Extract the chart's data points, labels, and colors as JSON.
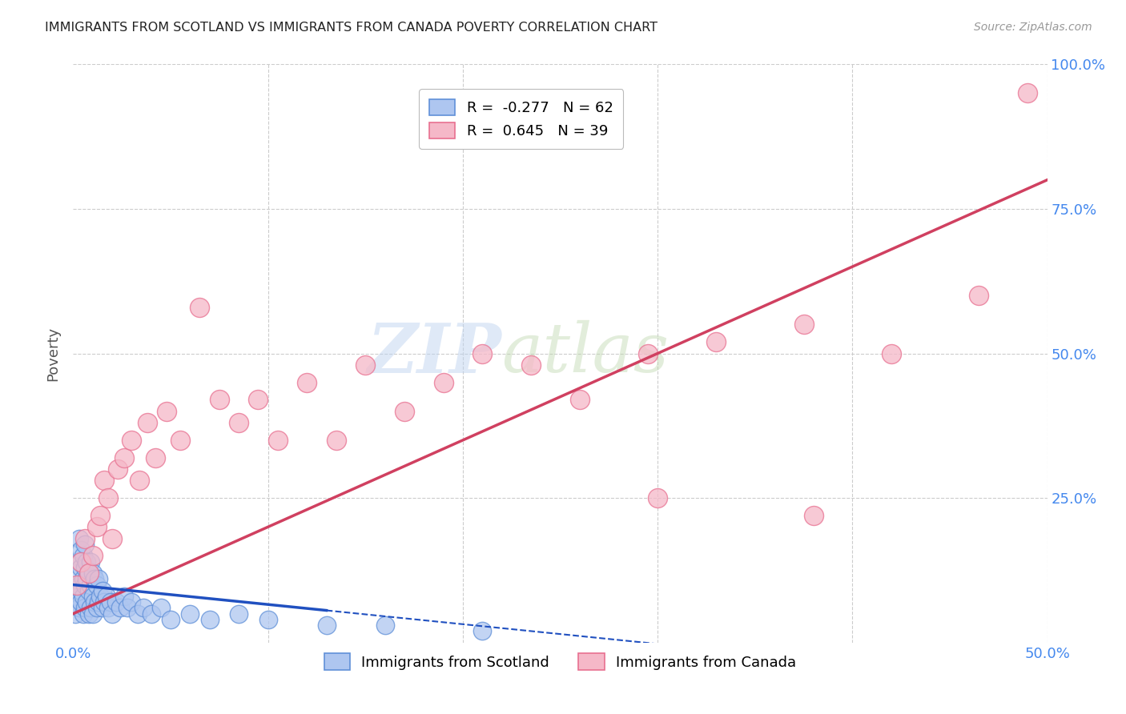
{
  "title": "IMMIGRANTS FROM SCOTLAND VS IMMIGRANTS FROM CANADA POVERTY CORRELATION CHART",
  "source": "Source: ZipAtlas.com",
  "ylabel": "Poverty",
  "xlim": [
    0,
    0.5
  ],
  "ylim": [
    0,
    1.0
  ],
  "xtick_vals": [
    0.0,
    0.1,
    0.2,
    0.3,
    0.4,
    0.5
  ],
  "xtick_labels": [
    "0.0%",
    "",
    "",
    "",
    "",
    "50.0%"
  ],
  "ytick_vals": [
    0.0,
    0.25,
    0.5,
    0.75,
    1.0
  ],
  "ytick_labels_right": [
    "",
    "25.0%",
    "50.0%",
    "75.0%",
    "100.0%"
  ],
  "scotland_color": "#aec6f0",
  "canada_color": "#f5b8c8",
  "scotland_edge": "#6090d8",
  "canada_edge": "#e87090",
  "trend_scotland_color": "#2050c0",
  "trend_canada_color": "#d04060",
  "scotland_R": -0.277,
  "scotland_N": 62,
  "canada_R": 0.645,
  "canada_N": 39,
  "legend_label_scotland": "Immigrants from Scotland",
  "legend_label_canada": "Immigrants from Canada",
  "watermark_zip": "ZIP",
  "watermark_atlas": "atlas",
  "background_color": "#ffffff",
  "grid_color": "#cccccc",
  "title_color": "#222222",
  "axis_label_color": "#555555",
  "tick_label_color": "#4488ee",
  "scotland_x": [
    0.001,
    0.002,
    0.002,
    0.003,
    0.003,
    0.003,
    0.003,
    0.004,
    0.004,
    0.004,
    0.004,
    0.005,
    0.005,
    0.005,
    0.005,
    0.006,
    0.006,
    0.006,
    0.006,
    0.007,
    0.007,
    0.007,
    0.008,
    0.008,
    0.008,
    0.009,
    0.009,
    0.009,
    0.01,
    0.01,
    0.01,
    0.011,
    0.011,
    0.012,
    0.012,
    0.013,
    0.013,
    0.014,
    0.015,
    0.015,
    0.016,
    0.017,
    0.018,
    0.019,
    0.02,
    0.022,
    0.024,
    0.026,
    0.028,
    0.03,
    0.033,
    0.036,
    0.04,
    0.045,
    0.05,
    0.06,
    0.07,
    0.085,
    0.1,
    0.13,
    0.16,
    0.21
  ],
  "scotland_y": [
    0.05,
    0.08,
    0.12,
    0.06,
    0.1,
    0.14,
    0.18,
    0.07,
    0.09,
    0.13,
    0.16,
    0.05,
    0.08,
    0.11,
    0.15,
    0.06,
    0.1,
    0.13,
    0.17,
    0.07,
    0.11,
    0.14,
    0.05,
    0.09,
    0.12,
    0.06,
    0.1,
    0.14,
    0.05,
    0.08,
    0.12,
    0.07,
    0.11,
    0.06,
    0.1,
    0.07,
    0.11,
    0.08,
    0.06,
    0.09,
    0.07,
    0.08,
    0.06,
    0.07,
    0.05,
    0.07,
    0.06,
    0.08,
    0.06,
    0.07,
    0.05,
    0.06,
    0.05,
    0.06,
    0.04,
    0.05,
    0.04,
    0.05,
    0.04,
    0.03,
    0.03,
    0.02
  ],
  "canada_x": [
    0.002,
    0.004,
    0.006,
    0.008,
    0.01,
    0.012,
    0.014,
    0.016,
    0.018,
    0.02,
    0.023,
    0.026,
    0.03,
    0.034,
    0.038,
    0.042,
    0.048,
    0.055,
    0.065,
    0.075,
    0.085,
    0.095,
    0.105,
    0.12,
    0.135,
    0.15,
    0.17,
    0.19,
    0.21,
    0.235,
    0.26,
    0.295,
    0.33,
    0.375,
    0.42,
    0.465,
    0.49,
    0.38,
    0.3
  ],
  "canada_y": [
    0.1,
    0.14,
    0.18,
    0.12,
    0.15,
    0.2,
    0.22,
    0.28,
    0.25,
    0.18,
    0.3,
    0.32,
    0.35,
    0.28,
    0.38,
    0.32,
    0.4,
    0.35,
    0.58,
    0.42,
    0.38,
    0.42,
    0.35,
    0.45,
    0.35,
    0.48,
    0.4,
    0.45,
    0.5,
    0.48,
    0.42,
    0.5,
    0.52,
    0.55,
    0.5,
    0.6,
    0.95,
    0.22,
    0.25
  ],
  "canada_trend_x0": 0.0,
  "canada_trend_y0": 0.05,
  "canada_trend_x1": 0.5,
  "canada_trend_y1": 0.8,
  "scotland_trend_x0": 0.0,
  "scotland_trend_y0": 0.1,
  "scotland_trend_x1": 0.22,
  "scotland_trend_y1": 0.025
}
